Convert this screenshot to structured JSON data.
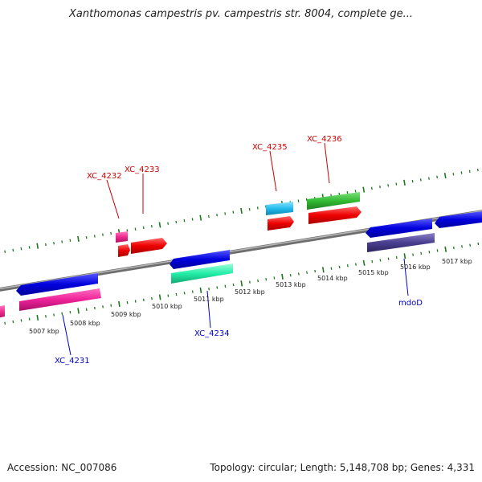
{
  "title": "Xanthomonas campestris pv. campestris str. 8004, complete ge...",
  "footer": {
    "accession": "Accession: NC_007086",
    "stats": "Topology: circular; Length: 5,148,708 bp; Genes: 4,331"
  },
  "map": {
    "kbp_labels": [
      "5007 kbp",
      "5008 kbp",
      "5009 kbp",
      "5010 kbp",
      "5011 kbp",
      "5012 kbp",
      "5013 kbp",
      "5014 kbp",
      "5015 kbp",
      "5016 kbp",
      "5017 kbp"
    ],
    "forward_labels": [
      "XC_4232",
      "XC_4233",
      "XC_4235",
      "XC_4236"
    ],
    "reverse_labels": [
      "XC_4231",
      "XC_4234",
      "mdoD"
    ],
    "colors": {
      "forward_label": "#cc0000",
      "reverse_label": "#0000cc",
      "tick": "#1a7a1a",
      "backbone": "#888888"
    }
  }
}
